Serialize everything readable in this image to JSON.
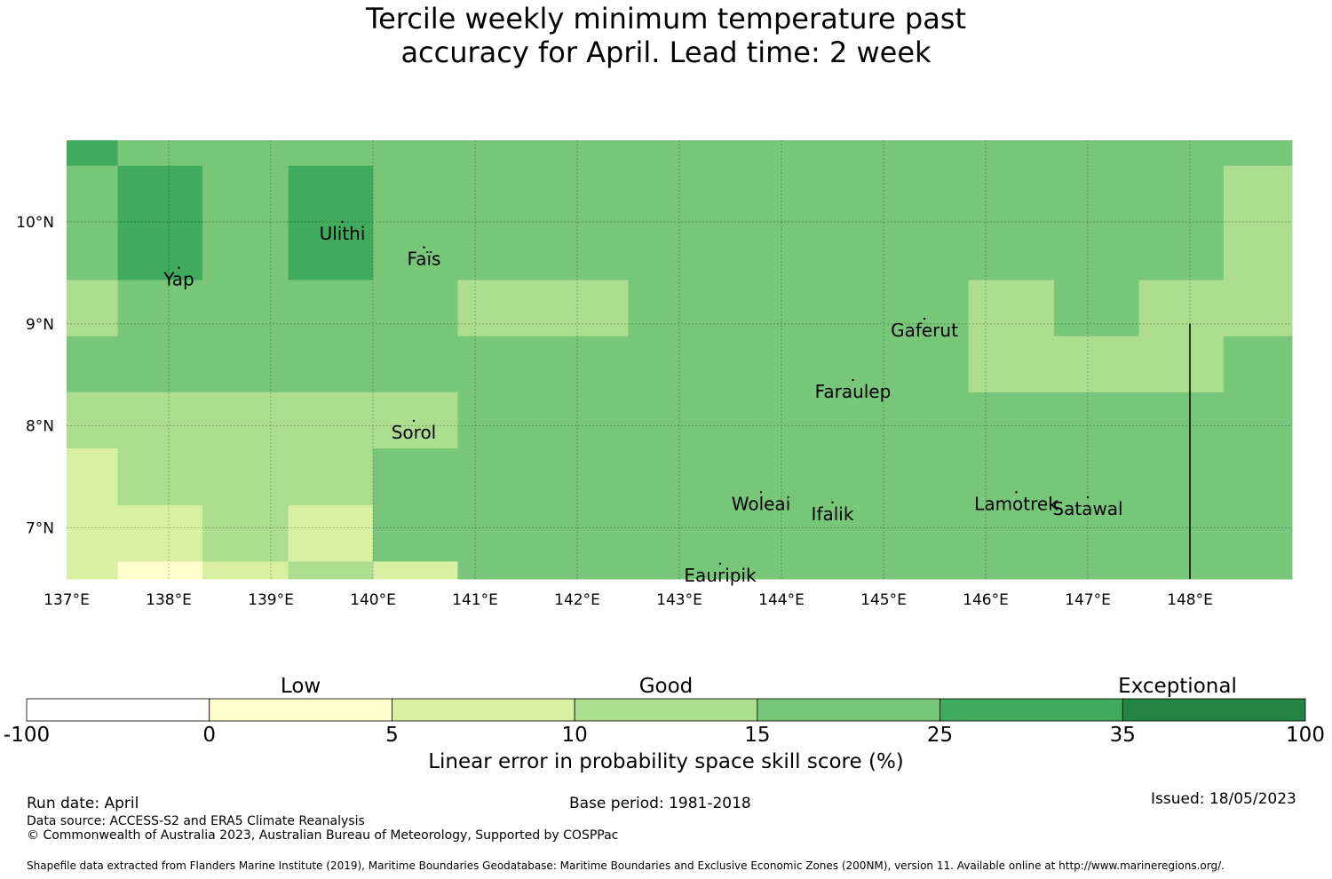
{
  "title": {
    "line1": "Tercile weekly minimum temperature past",
    "line2": "accuracy for April. Lead time: 2 week"
  },
  "map": {
    "lon_range": [
      137.0,
      149.0
    ],
    "lat_range": [
      6.5,
      10.8
    ],
    "lon_ticks": [
      "137°E",
      "138°E",
      "139°E",
      "140°E",
      "141°E",
      "142°E",
      "143°E",
      "144°E",
      "145°E",
      "146°E",
      "147°E",
      "148°E"
    ],
    "lat_ticks": [
      "10°N",
      "9°N",
      "8°N",
      "7°N"
    ],
    "islands": [
      {
        "name": "Ulithi",
        "lon": 139.7,
        "lat": 10.0
      },
      {
        "name": "Faïs",
        "lon": 140.5,
        "lat": 9.75
      },
      {
        "name": "Yap",
        "lon": 138.1,
        "lat": 9.55
      },
      {
        "name": "Gaferut",
        "lon": 145.4,
        "lat": 9.05
      },
      {
        "name": "Faraulep",
        "lon": 144.7,
        "lat": 8.45
      },
      {
        "name": "Sorol",
        "lon": 140.4,
        "lat": 8.05
      },
      {
        "name": "Woleai",
        "lon": 143.8,
        "lat": 7.35
      },
      {
        "name": "Ifalik",
        "lon": 144.5,
        "lat": 7.25
      },
      {
        "name": "Lamotrek",
        "lon": 146.3,
        "lat": 7.35
      },
      {
        "name": "Satawal",
        "lon": 147.0,
        "lat": 7.3
      },
      {
        "name": "Eauripik",
        "lon": 143.4,
        "lat": 6.65
      }
    ]
  },
  "colorbar": {
    "tick_labels": [
      "-100",
      "0",
      "5",
      "10",
      "15",
      "25",
      "35",
      "100"
    ],
    "colors": [
      "#ffffff",
      "#ffffcc",
      "#d9f0a3",
      "#addd8e",
      "#78c679",
      "#41ab5d",
      "#238443"
    ],
    "categories": [
      "Low",
      "Good",
      "Exceptional"
    ],
    "label": "Linear error in probability space skill score (%)"
  },
  "footer": {
    "run_date": "Run date: April",
    "base_period": "Base period: 1981-2018",
    "issued": "Issued: 18/05/2023",
    "data_source": "Data source: ACCESS-S2 and ERA5 Climate Reanalysis",
    "copyright": "© Commonwealth of Australia 2023, Australian Bureau of Meteorology, Supported by COSPPac",
    "shapefile": "Shapefile data extracted from Flanders Marine Institute (2019), Maritime Boundaries Geodatabase: Maritime Boundaries and Exclusive Economic Zones (200NM), version 11. Available online at http://www.marineregions.org/."
  },
  "grid_values": {
    "note_columns": "column edges (°E)",
    "col_edges": [
      137.0,
      137.5,
      138.33,
      139.17,
      140.0,
      140.83,
      141.67,
      142.5,
      143.33,
      144.17,
      145.0,
      145.83,
      146.67,
      147.5,
      148.33,
      149.0
    ],
    "row_edges": [
      10.8,
      10.55,
      9.43,
      8.88,
      8.33,
      7.78,
      7.22,
      6.67,
      6.5
    ],
    "rows": [
      [
        5,
        4,
        4,
        4,
        4,
        4,
        4,
        4,
        4,
        4,
        4,
        4,
        4,
        4,
        4
      ],
      [
        4,
        5,
        4,
        5,
        4,
        4,
        4,
        4,
        4,
        4,
        4,
        4,
        4,
        4,
        3
      ],
      [
        3,
        4,
        4,
        4,
        4,
        3,
        3,
        4,
        4,
        4,
        4,
        3,
        4,
        3,
        3
      ],
      [
        4,
        4,
        4,
        4,
        4,
        4,
        4,
        4,
        4,
        4,
        4,
        3,
        3,
        3,
        4
      ],
      [
        3,
        3,
        3,
        3,
        3,
        4,
        4,
        4,
        4,
        4,
        4,
        4,
        4,
        4,
        4
      ],
      [
        2,
        3,
        3,
        3,
        4,
        4,
        4,
        4,
        4,
        4,
        4,
        4,
        4,
        4,
        4
      ],
      [
        2,
        2,
        3,
        2,
        4,
        4,
        4,
        4,
        4,
        4,
        4,
        4,
        4,
        4,
        4
      ],
      [
        2,
        1,
        2,
        3,
        2,
        4,
        4,
        4,
        4,
        4,
        4,
        4,
        4,
        4,
        4
      ]
    ]
  }
}
